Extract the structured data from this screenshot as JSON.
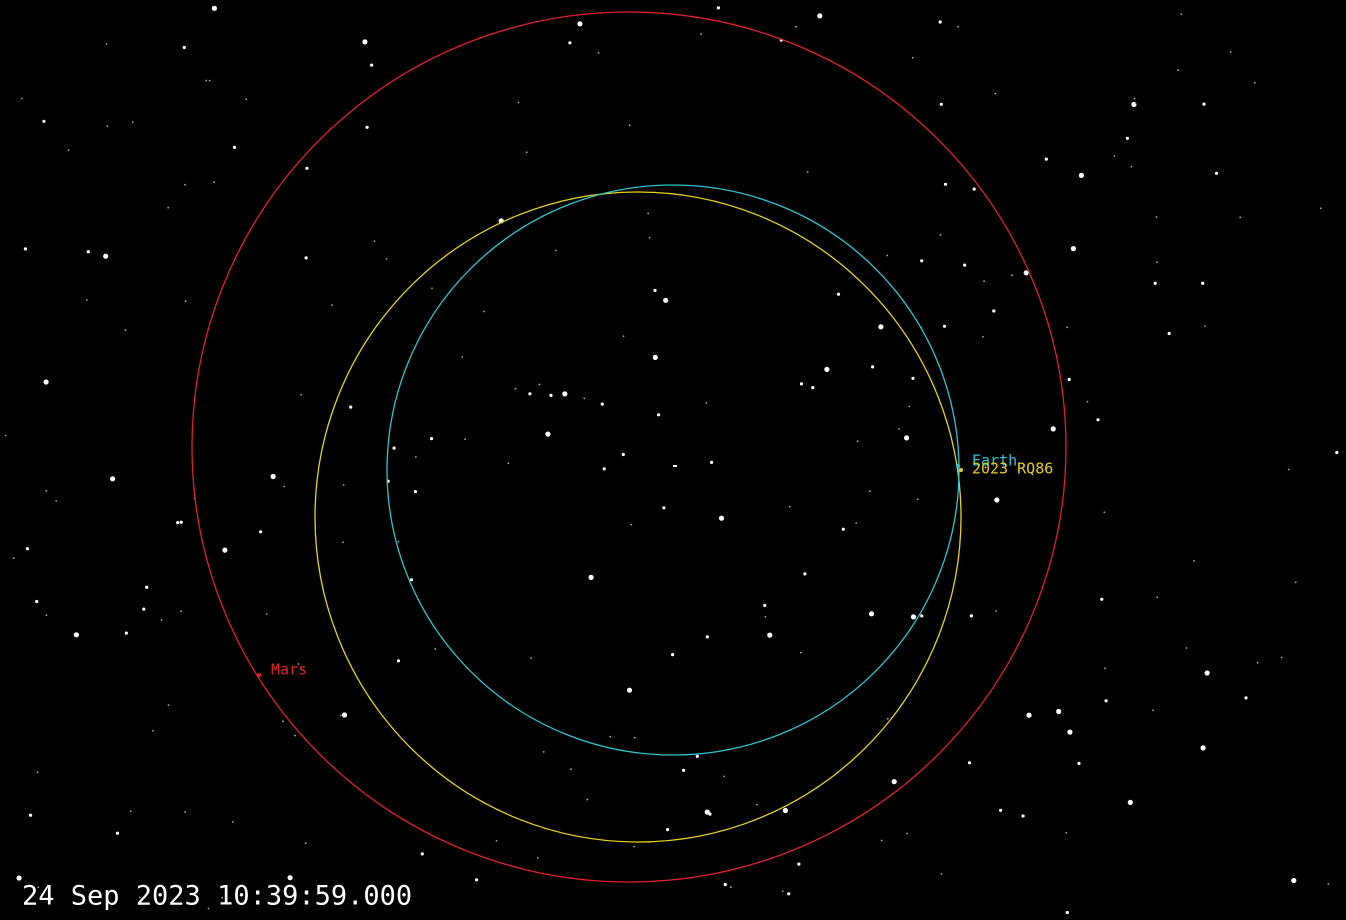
{
  "bodies": [
    {
      "label": "Mars"
    },
    {
      "label": "Earth"
    },
    {
      "label": "2023 RQ86"
    }
  ],
  "timestamp": "24 Sep 2023 10:39:59.000"
}
